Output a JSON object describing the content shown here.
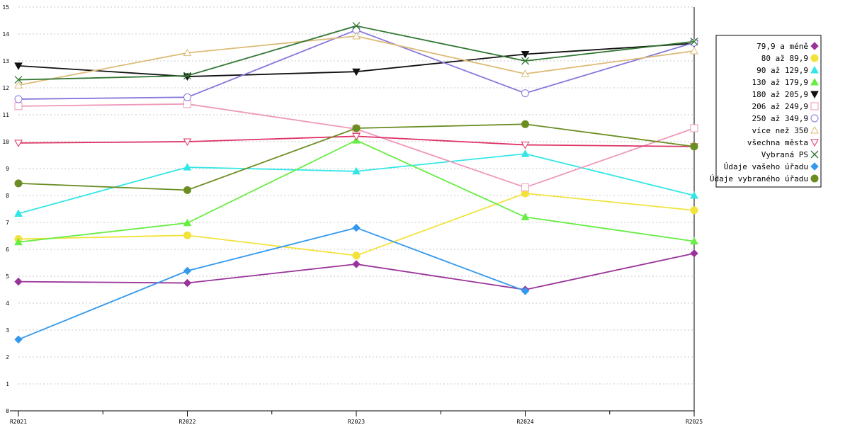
{
  "chart_data": {
    "type": "line",
    "title": "",
    "xlabel": "",
    "ylabel": "",
    "ylim": [
      0,
      15
    ],
    "yticks": [
      0,
      1,
      2,
      3,
      4,
      5,
      6,
      7,
      8,
      9,
      10,
      11,
      12,
      13,
      14,
      15
    ],
    "grid": true,
    "legend_position": "right",
    "categories": [
      "R2021",
      "R2022",
      "R2023",
      "R2024",
      "R2025"
    ],
    "series": [
      {
        "name": "79,9 a méně",
        "color": "#993399",
        "marker": "diamond-filled",
        "values": [
          4.8,
          4.75,
          5.45,
          4.5,
          5.85
        ]
      },
      {
        "name": "80 až 89,9",
        "color": "#f2e23a",
        "marker": "circle-filled",
        "values": [
          6.38,
          6.52,
          5.77,
          8.08,
          7.45
        ]
      },
      {
        "name": "90 až 129,9",
        "color": "#33e6e6",
        "marker": "triangle-up-filled",
        "values": [
          7.33,
          9.05,
          8.9,
          9.55,
          8.0
        ]
      },
      {
        "name": "130 až 179,9",
        "color": "#66ee44",
        "marker": "triangle-up-filled",
        "values": [
          6.27,
          6.98,
          10.05,
          7.2,
          6.3
        ]
      },
      {
        "name": "180 až 205,9",
        "color": "#111111",
        "marker": "triangle-down-filled",
        "values": [
          12.82,
          12.42,
          12.6,
          13.25,
          13.65
        ]
      },
      {
        "name": "206 až 249,9",
        "color": "#ee99bb",
        "marker": "square-open",
        "values": [
          11.32,
          11.4,
          10.47,
          8.3,
          10.5
        ]
      },
      {
        "name": "250 až 349,9",
        "color": "#8877dd",
        "marker": "circle-open",
        "values": [
          11.58,
          11.65,
          14.15,
          11.8,
          13.68
        ]
      },
      {
        "name": "více než 350",
        "color": "#ddbb77",
        "marker": "triangle-up-open",
        "values": [
          12.1,
          13.3,
          13.92,
          12.52,
          13.37
        ]
      },
      {
        "name": "všechna města",
        "color": "#dd3366",
        "marker": "triangle-down-open",
        "values": [
          9.95,
          10.0,
          10.2,
          9.88,
          9.82
        ]
      },
      {
        "name": "Vybraná PS",
        "color": "#337733",
        "marker": "x",
        "values": [
          12.3,
          12.45,
          14.3,
          13.0,
          13.72
        ]
      },
      {
        "name": "Údaje vašeho úřadu",
        "color": "#3399ee",
        "marker": "diamond-filled",
        "values": [
          2.65,
          5.2,
          6.8,
          4.45,
          null
        ]
      },
      {
        "name": "Údaje vybraného úřadu",
        "color": "#6b8e23",
        "marker": "circle-filled",
        "values": [
          8.45,
          8.2,
          10.5,
          10.65,
          9.82
        ]
      }
    ]
  }
}
